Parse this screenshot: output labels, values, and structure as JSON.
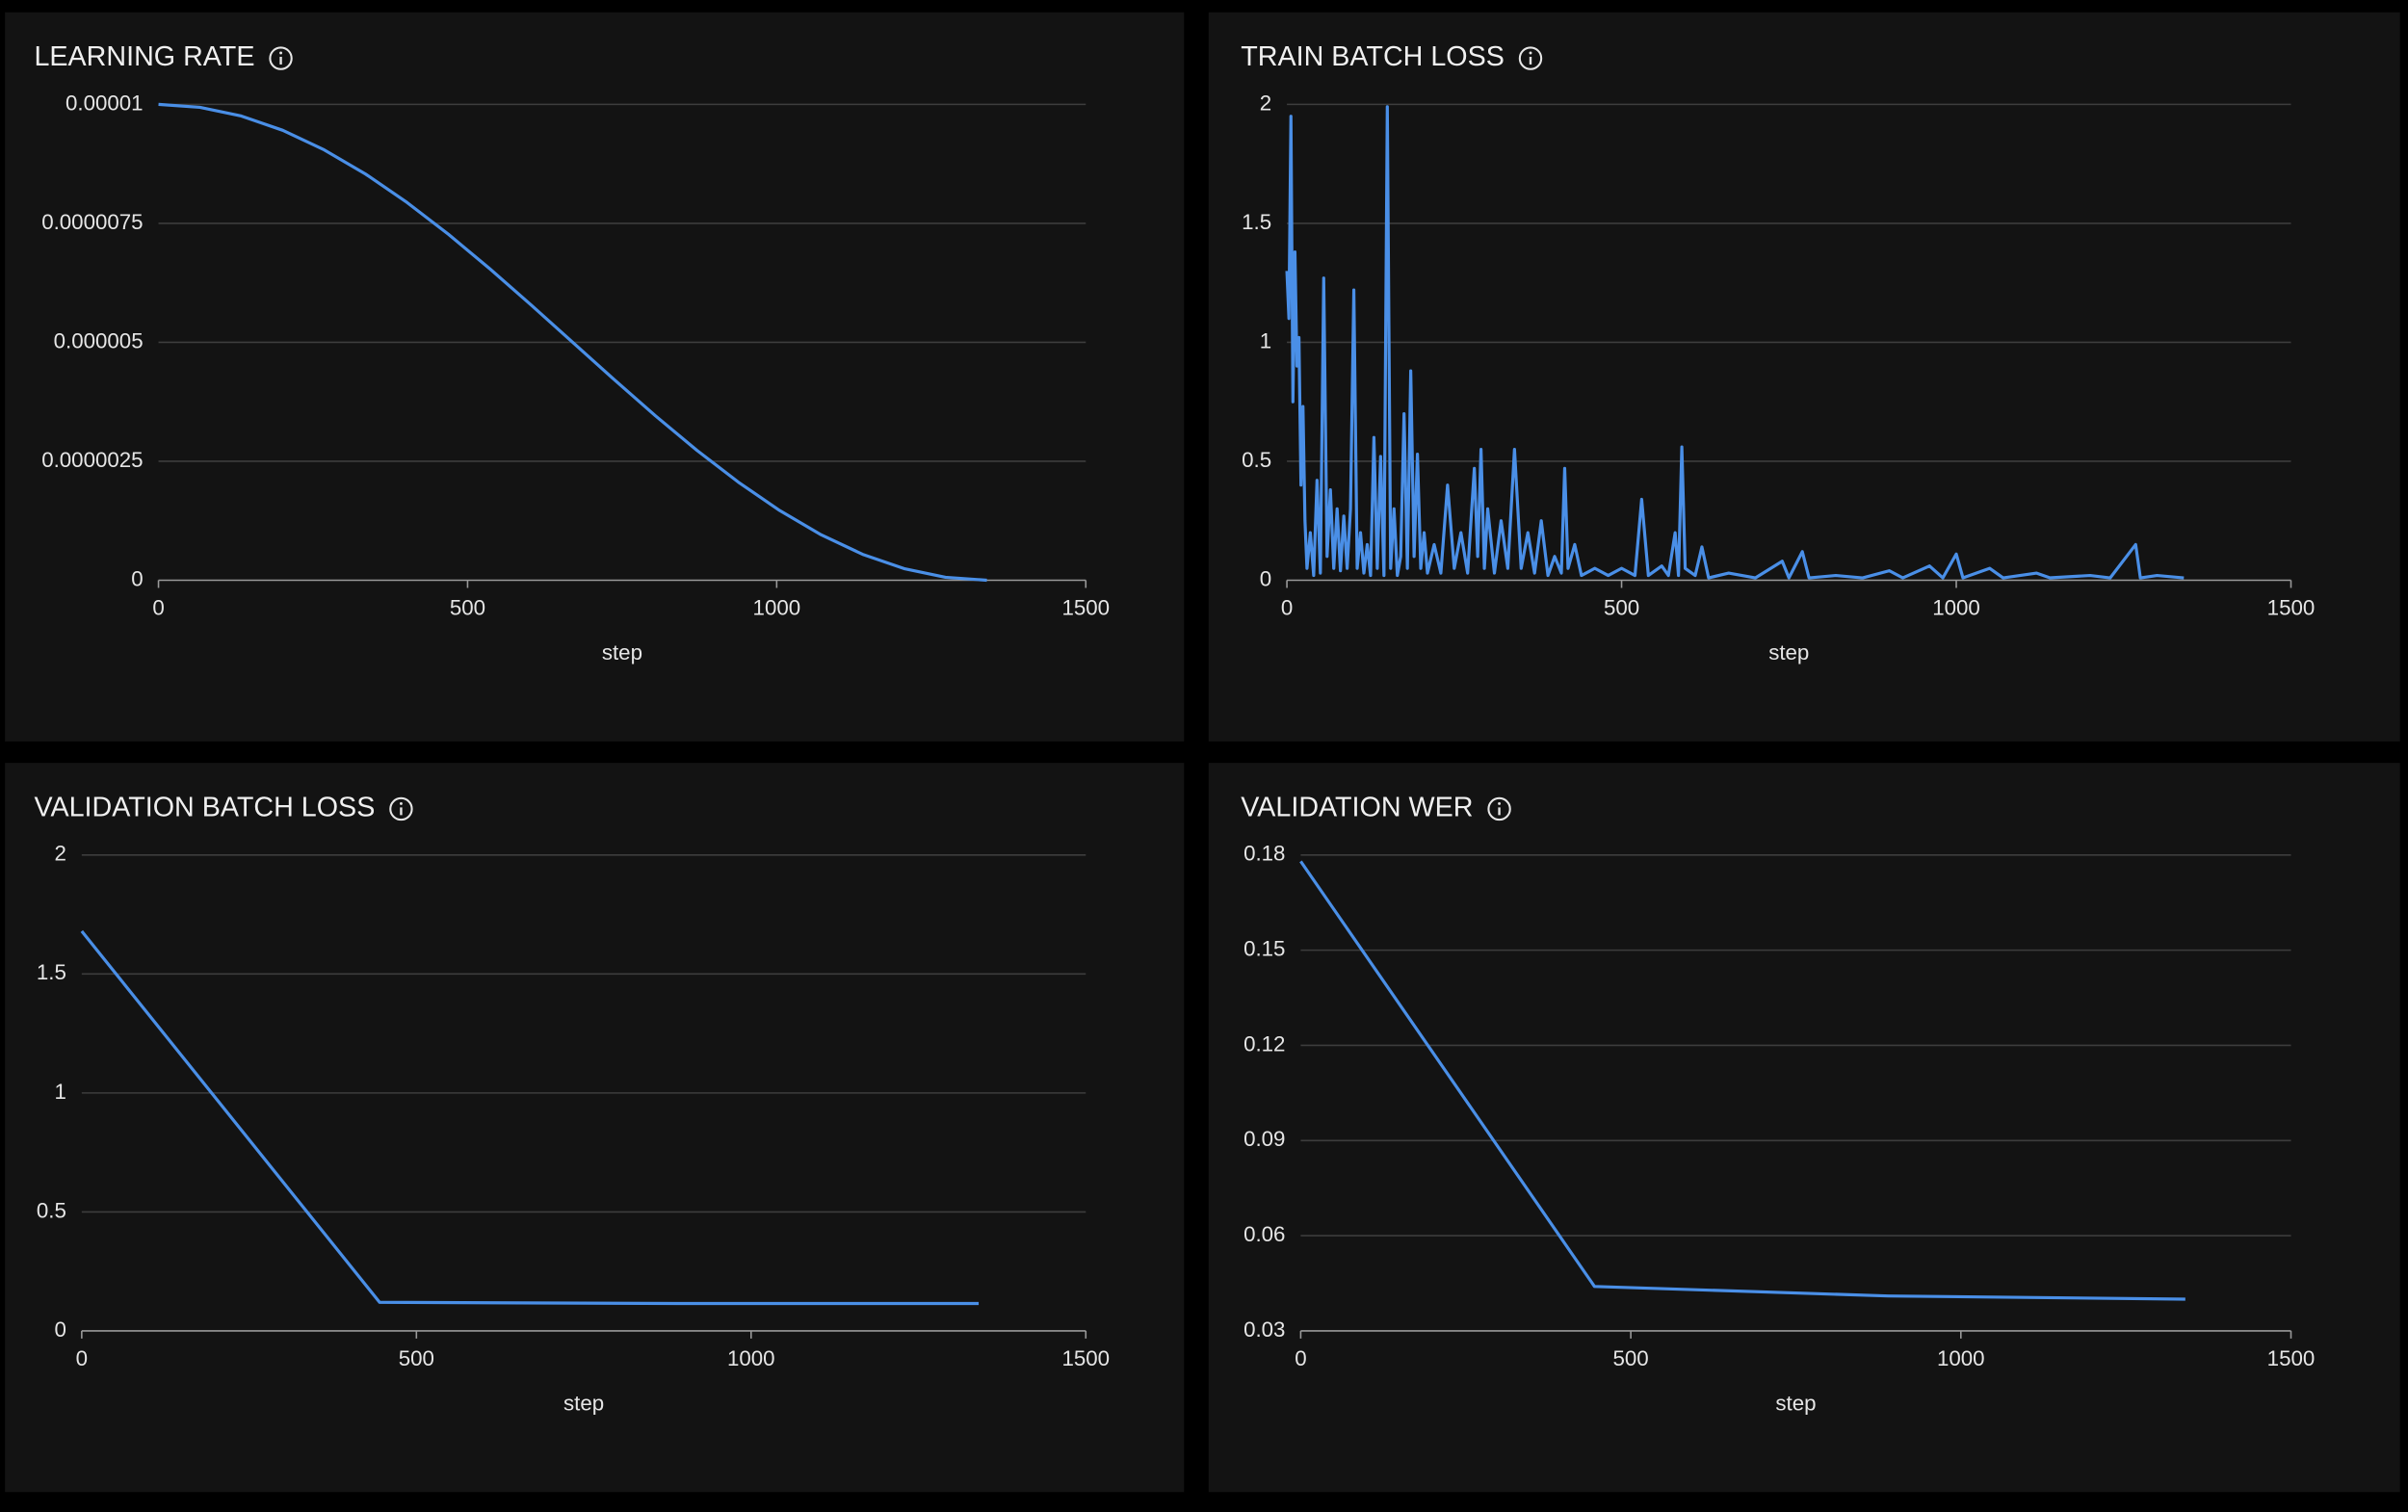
{
  "chart_data": [
    {
      "type": "line",
      "title": "LEARNING RATE",
      "x_label": "step",
      "color": "#4a8fe7",
      "x": [
        0,
        67,
        134,
        201,
        268,
        335,
        402,
        469,
        536,
        603,
        670,
        737,
        804,
        871,
        938,
        1005,
        1072,
        1139,
        1206,
        1273,
        1340
      ],
      "values": [
        1e-05,
        9.9385e-06,
        9.7553e-06,
        9.4551e-06,
        9.0451e-06,
        8.5355e-06,
        7.939e-06,
        7.27e-06,
        6.5451e-06,
        5.7822e-06,
        5e-06,
        4.2178e-06,
        3.4549e-06,
        2.73e-06,
        2.061e-06,
        1.4645e-06,
        9.549e-07,
        5.449e-07,
        2.447e-07,
        6.15e-08,
        0
      ],
      "xlim": [
        0,
        1500
      ],
      "xticks": [
        0,
        500,
        1000,
        1500
      ],
      "ylim": [
        0,
        1e-05
      ],
      "yticks": [
        0,
        2.5e-06,
        5e-06,
        7.5e-06,
        1e-05
      ],
      "grid": true
    },
    {
      "type": "line",
      "title": "TRAIN BATCH LOSS",
      "x_label": "step",
      "color": "#4a8fe7",
      "x": [
        0,
        3,
        6,
        9,
        12,
        15,
        18,
        21,
        24,
        27,
        30,
        35,
        40,
        45,
        50,
        55,
        60,
        65,
        70,
        75,
        80,
        85,
        90,
        95,
        100,
        105,
        110,
        115,
        120,
        125,
        130,
        135,
        140,
        145,
        150,
        155,
        160,
        165,
        170,
        175,
        180,
        185,
        190,
        195,
        200,
        205,
        210,
        220,
        230,
        240,
        250,
        260,
        270,
        280,
        285,
        290,
        295,
        300,
        310,
        320,
        330,
        340,
        350,
        360,
        370,
        380,
        390,
        400,
        410,
        415,
        420,
        430,
        440,
        460,
        480,
        500,
        520,
        530,
        540,
        560,
        570,
        580,
        585,
        590,
        595,
        610,
        620,
        630,
        660,
        700,
        740,
        750,
        770,
        780,
        820,
        860,
        900,
        920,
        960,
        980,
        1000,
        1010,
        1050,
        1070,
        1120,
        1140,
        1200,
        1230,
        1268,
        1275,
        1300,
        1340
      ],
      "values": [
        1.3,
        1.1,
        1.95,
        0.75,
        1.38,
        0.9,
        1.02,
        0.4,
        0.73,
        0.25,
        0.05,
        0.2,
        0.02,
        0.42,
        0.03,
        1.27,
        0.1,
        0.38,
        0.05,
        0.3,
        0.04,
        0.27,
        0.05,
        0.3,
        1.22,
        0.05,
        0.2,
        0.03,
        0.15,
        0.02,
        0.6,
        0.05,
        0.52,
        0.02,
        1.99,
        0.05,
        0.3,
        0.02,
        0.1,
        0.7,
        0.05,
        0.88,
        0.1,
        0.53,
        0.05,
        0.2,
        0.03,
        0.15,
        0.03,
        0.4,
        0.05,
        0.2,
        0.03,
        0.47,
        0.1,
        0.55,
        0.05,
        0.3,
        0.03,
        0.25,
        0.05,
        0.55,
        0.05,
        0.2,
        0.03,
        0.25,
        0.02,
        0.1,
        0.03,
        0.47,
        0.05,
        0.15,
        0.02,
        0.05,
        0.02,
        0.05,
        0.02,
        0.34,
        0.02,
        0.06,
        0.02,
        0.2,
        0.02,
        0.56,
        0.05,
        0.02,
        0.14,
        0.01,
        0.03,
        0.01,
        0.08,
        0.01,
        0.12,
        0.01,
        0.02,
        0.01,
        0.04,
        0.01,
        0.06,
        0.01,
        0.11,
        0.01,
        0.05,
        0.01,
        0.03,
        0.01,
        0.02,
        0.01,
        0.15,
        0.01,
        0.02,
        0.01
      ],
      "xlim": [
        0,
        1500
      ],
      "xticks": [
        0,
        500,
        1000,
        1500
      ],
      "ylim": [
        0,
        2
      ],
      "yticks": [
        0,
        0.5,
        1,
        1.5,
        2
      ],
      "grid": true
    },
    {
      "type": "line",
      "title": "VALIDATION BATCH LOSS",
      "x_label": "step",
      "color": "#4a8fe7",
      "x": [
        0,
        445,
        890,
        1340
      ],
      "values": [
        1.68,
        0.12,
        0.115,
        0.115
      ],
      "xlim": [
        0,
        1500
      ],
      "xticks": [
        0,
        500,
        1000,
        1500
      ],
      "ylim": [
        0,
        2
      ],
      "yticks": [
        0,
        0.5,
        1,
        1.5,
        2
      ],
      "grid": true
    },
    {
      "type": "line",
      "title": "VALIDATION WER",
      "x_label": "step",
      "color": "#4a8fe7",
      "x": [
        0,
        445,
        890,
        1340
      ],
      "values": [
        0.178,
        0.044,
        0.041,
        0.04
      ],
      "xlim": [
        0,
        1500
      ],
      "xticks": [
        0,
        500,
        1000,
        1500
      ],
      "ylim": [
        0.03,
        0.18
      ],
      "yticks": [
        0.03,
        0.06,
        0.09,
        0.12,
        0.15,
        0.18
      ],
      "grid": true
    }
  ]
}
